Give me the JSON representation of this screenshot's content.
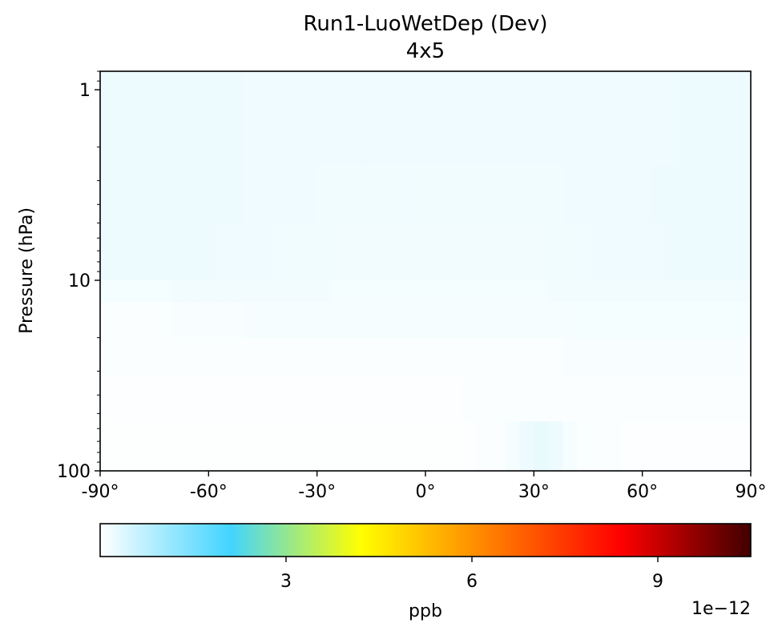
{
  "chart_data": {
    "type": "heatmap",
    "title": "Run1-LuoWetDep (Dev)",
    "subtitle": "4x5",
    "xlabel": "",
    "ylabel": "Pressure (hPa)",
    "xlim": [
      -90,
      90
    ],
    "ylim": [
      100,
      0.8
    ],
    "y_scale": "log",
    "y_inverted": true,
    "x_ticks": [
      "-90°",
      "-60°",
      "-30°",
      "0°",
      "30°",
      "60°",
      "90°"
    ],
    "x_tick_values": [
      -90,
      -60,
      -30,
      0,
      30,
      60,
      90
    ],
    "y_ticks": [
      "1",
      "10",
      "100"
    ],
    "y_tick_values": [
      1,
      10,
      100
    ],
    "grid": false,
    "colorbar": {
      "label": "ppb",
      "offset_label": "1e−12",
      "range": [
        0,
        10.5
      ],
      "ticks": [
        "3",
        "6",
        "9"
      ],
      "tick_values": [
        3,
        6,
        9
      ],
      "colormap": [
        "#ffffff",
        "#42d4ff",
        "#ffff00",
        "#ff7f00",
        "#ff0000",
        "#400000"
      ]
    },
    "lat_edges": [
      -90,
      -86,
      -82,
      -78,
      -74,
      -70,
      -66,
      -62,
      -58,
      -54,
      -50,
      -46,
      -42,
      -38,
      -34,
      -30,
      -26,
      -22,
      -18,
      -14,
      -10,
      -6,
      -2,
      2,
      6,
      10,
      14,
      18,
      22,
      26,
      30,
      34,
      38,
      42,
      46,
      50,
      54,
      58,
      62,
      66,
      70,
      74,
      78,
      82,
      86,
      90
    ],
    "pressure_edges": [
      0.8,
      2.5,
      5.0,
      10.0,
      13.0,
      20.0,
      32.0,
      55.0,
      100.0
    ],
    "values": [
      [
        0.2,
        0.2,
        0.2,
        0.2,
        0.2,
        0.2,
        0.2,
        0.2,
        0.2,
        0.2,
        0.18,
        0.18,
        0.18,
        0.18,
        0.18,
        0.18,
        0.18,
        0.18,
        0.18,
        0.18,
        0.18,
        0.18,
        0.18,
        0.18,
        0.18,
        0.18,
        0.18,
        0.18,
        0.18,
        0.18,
        0.18,
        0.18,
        0.18,
        0.18,
        0.18,
        0.18,
        0.18,
        0.18,
        0.18,
        0.18,
        0.2,
        0.2,
        0.2,
        0.2,
        0.2
      ],
      [
        0.2,
        0.2,
        0.2,
        0.2,
        0.2,
        0.2,
        0.2,
        0.2,
        0.2,
        0.2,
        0.18,
        0.18,
        0.18,
        0.18,
        0.18,
        0.16,
        0.16,
        0.16,
        0.16,
        0.16,
        0.16,
        0.16,
        0.16,
        0.16,
        0.16,
        0.16,
        0.16,
        0.16,
        0.16,
        0.16,
        0.16,
        0.16,
        0.18,
        0.18,
        0.18,
        0.18,
        0.18,
        0.18,
        0.2,
        0.2,
        0.2,
        0.2,
        0.2,
        0.2,
        0.2
      ],
      [
        0.2,
        0.2,
        0.2,
        0.2,
        0.2,
        0.2,
        0.2,
        0.2,
        0.18,
        0.18,
        0.18,
        0.18,
        0.16,
        0.16,
        0.16,
        0.16,
        0.14,
        0.14,
        0.14,
        0.14,
        0.14,
        0.14,
        0.14,
        0.14,
        0.14,
        0.14,
        0.14,
        0.14,
        0.14,
        0.14,
        0.14,
        0.16,
        0.16,
        0.16,
        0.18,
        0.18,
        0.18,
        0.18,
        0.18,
        0.2,
        0.2,
        0.2,
        0.2,
        0.2,
        0.2
      ],
      [
        0.12,
        0.12,
        0.12,
        0.12,
        0.12,
        0.14,
        0.14,
        0.14,
        0.14,
        0.14,
        0.14,
        0.14,
        0.14,
        0.14,
        0.14,
        0.14,
        0.12,
        0.12,
        0.12,
        0.12,
        0.12,
        0.12,
        0.12,
        0.12,
        0.12,
        0.12,
        0.12,
        0.12,
        0.12,
        0.12,
        0.12,
        0.14,
        0.14,
        0.14,
        0.14,
        0.14,
        0.14,
        0.14,
        0.14,
        0.14,
        0.14,
        0.14,
        0.14,
        0.14,
        0.14
      ],
      [
        0.06,
        0.06,
        0.06,
        0.06,
        0.06,
        0.08,
        0.08,
        0.08,
        0.08,
        0.08,
        0.1,
        0.1,
        0.1,
        0.1,
        0.1,
        0.1,
        0.1,
        0.1,
        0.1,
        0.1,
        0.1,
        0.1,
        0.1,
        0.1,
        0.1,
        0.1,
        0.1,
        0.1,
        0.1,
        0.1,
        0.1,
        0.1,
        0.12,
        0.12,
        0.12,
        0.12,
        0.12,
        0.12,
        0.12,
        0.12,
        0.12,
        0.12,
        0.12,
        0.12,
        0.12
      ],
      [
        0.04,
        0.04,
        0.04,
        0.04,
        0.04,
        0.04,
        0.04,
        0.04,
        0.04,
        0.04,
        0.06,
        0.06,
        0.06,
        0.06,
        0.06,
        0.06,
        0.06,
        0.06,
        0.06,
        0.06,
        0.06,
        0.06,
        0.06,
        0.06,
        0.06,
        0.06,
        0.06,
        0.06,
        0.06,
        0.06,
        0.06,
        0.06,
        0.08,
        0.08,
        0.08,
        0.08,
        0.08,
        0.08,
        0.08,
        0.08,
        0.08,
        0.08,
        0.08,
        0.08,
        0.08
      ],
      [
        0.03,
        0.03,
        0.03,
        0.03,
        0.03,
        0.03,
        0.03,
        0.03,
        0.03,
        0.03,
        0.03,
        0.03,
        0.03,
        0.03,
        0.03,
        0.03,
        0.03,
        0.03,
        0.03,
        0.03,
        0.03,
        0.03,
        0.03,
        0.03,
        0.03,
        0.04,
        0.04,
        0.04,
        0.05,
        0.05,
        0.05,
        0.05,
        0.06,
        0.06,
        0.06,
        0.06,
        0.06,
        0.06,
        0.06,
        0.06,
        0.06,
        0.06,
        0.06,
        0.06,
        0.06
      ],
      [
        0.02,
        0.02,
        0.02,
        0.02,
        0.02,
        0.02,
        0.02,
        0.02,
        0.02,
        0.02,
        0.02,
        0.02,
        0.02,
        0.02,
        0.02,
        0.02,
        0.02,
        0.02,
        0.02,
        0.02,
        0.02,
        0.02,
        0.02,
        0.02,
        0.02,
        0.03,
        0.04,
        0.06,
        0.1,
        0.2,
        0.25,
        0.2,
        0.1,
        0.06,
        0.04,
        0.04,
        0.03,
        0.03,
        0.03,
        0.03,
        0.03,
        0.03,
        0.03,
        0.03,
        0.03
      ]
    ]
  }
}
